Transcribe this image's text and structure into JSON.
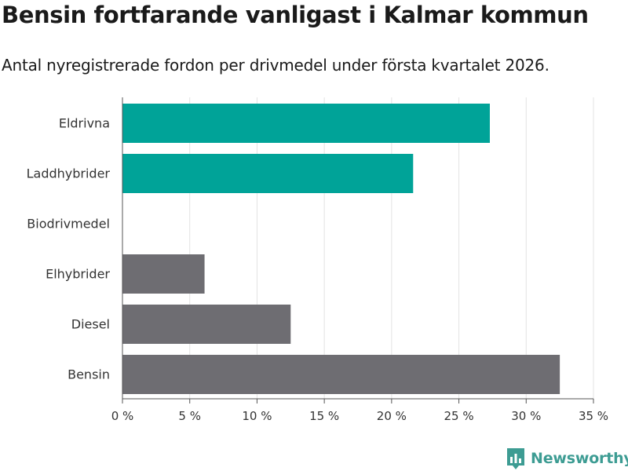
{
  "chart_data": {
    "type": "bar",
    "orientation": "horizontal",
    "title": "Bensin fortfarande vanligast i Kalmar kommun",
    "subtitle": "Antal nyregistrerade fordon per drivmedel under första kvartalet 2026.",
    "categories": [
      "Eldrivna",
      "Laddhybrider",
      "Biodrivmedel",
      "Elhybrider",
      "Diesel",
      "Bensin"
    ],
    "values": [
      27.3,
      21.6,
      0,
      6.1,
      12.5,
      32.5
    ],
    "bar_colors": [
      "#00a398",
      "#00a398",
      "#6e6d72",
      "#6e6d72",
      "#6e6d72",
      "#6e6d72"
    ],
    "xlim": [
      0,
      35
    ],
    "xticks": [
      0,
      5,
      10,
      15,
      20,
      25,
      30,
      35
    ],
    "xtick_labels": [
      "0 %",
      "5 %",
      "10 %",
      "15 %",
      "20 %",
      "25 %",
      "30 %",
      "35 %"
    ],
    "xlabel": "",
    "ylabel": "",
    "grid": true
  },
  "brand": {
    "name": "Newsworthy",
    "color": "#3d9c93",
    "icon": "newsworthy-logo-icon"
  }
}
